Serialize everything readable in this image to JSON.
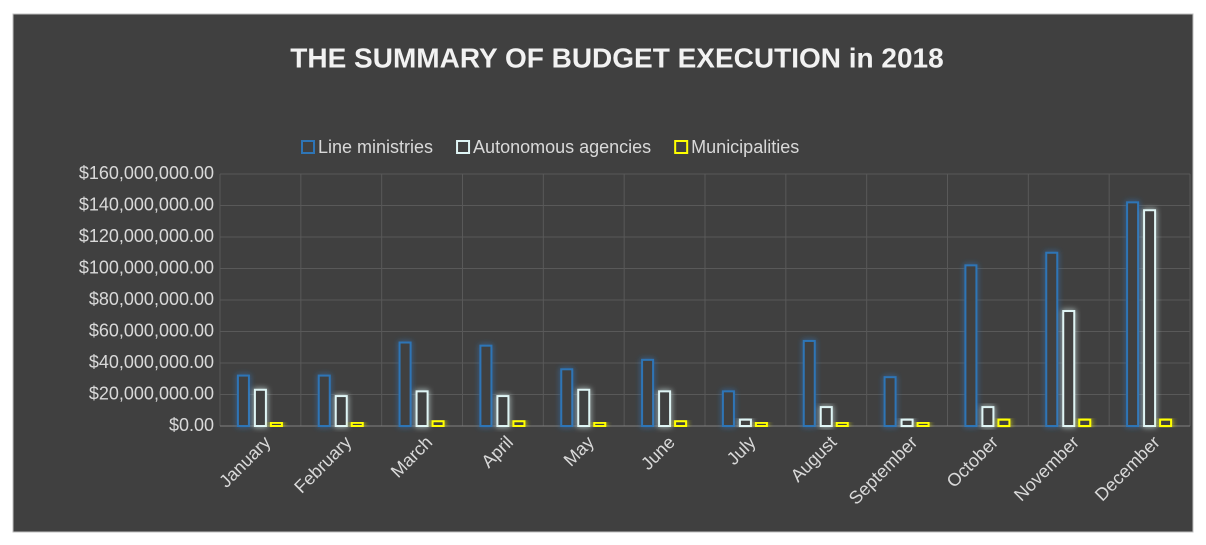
{
  "chart_data": {
    "type": "bar",
    "title": "THE SUMMARY OF BUDGET EXECUTION in 2018",
    "categories": [
      "January",
      "February",
      "March",
      "April",
      "May",
      "June",
      "July",
      "August",
      "September",
      "October",
      "November",
      "December"
    ],
    "series": [
      {
        "name": "Line ministries",
        "color": "#2e75b6",
        "values": [
          32000000,
          32000000,
          53000000,
          51000000,
          36000000,
          42000000,
          22000000,
          54000000,
          31000000,
          102000000,
          110000000,
          142000000
        ]
      },
      {
        "name": "Autonomous agencies",
        "color": "#dff5f5",
        "values": [
          23000000,
          19000000,
          22000000,
          19000000,
          23000000,
          22000000,
          4000000,
          12000000,
          4000000,
          12000000,
          73000000,
          137000000
        ]
      },
      {
        "name": "Municipalities",
        "color": "#ffff00",
        "values": [
          2000000,
          2000000,
          3000000,
          3000000,
          2000000,
          3000000,
          2000000,
          2000000,
          2000000,
          4000000,
          4000000,
          4000000
        ]
      }
    ],
    "ylim": [
      0,
      160000000
    ],
    "yticks": [
      {
        "value": 0,
        "label": "$0.00"
      },
      {
        "value": 20000000,
        "label": "$20,000,000.00"
      },
      {
        "value": 40000000,
        "label": "$40,000,000.00"
      },
      {
        "value": 60000000,
        "label": "$60,000,000.00"
      },
      {
        "value": 80000000,
        "label": "$80,000,000.00"
      },
      {
        "value": 100000000,
        "label": "$100,000,000.00"
      },
      {
        "value": 120000000,
        "label": "$120,000,000.00"
      },
      {
        "value": 140000000,
        "label": "$140,000,000.00"
      },
      {
        "value": 160000000,
        "label": "$160,000,000.00"
      }
    ],
    "grid": true,
    "legend": "top"
  }
}
